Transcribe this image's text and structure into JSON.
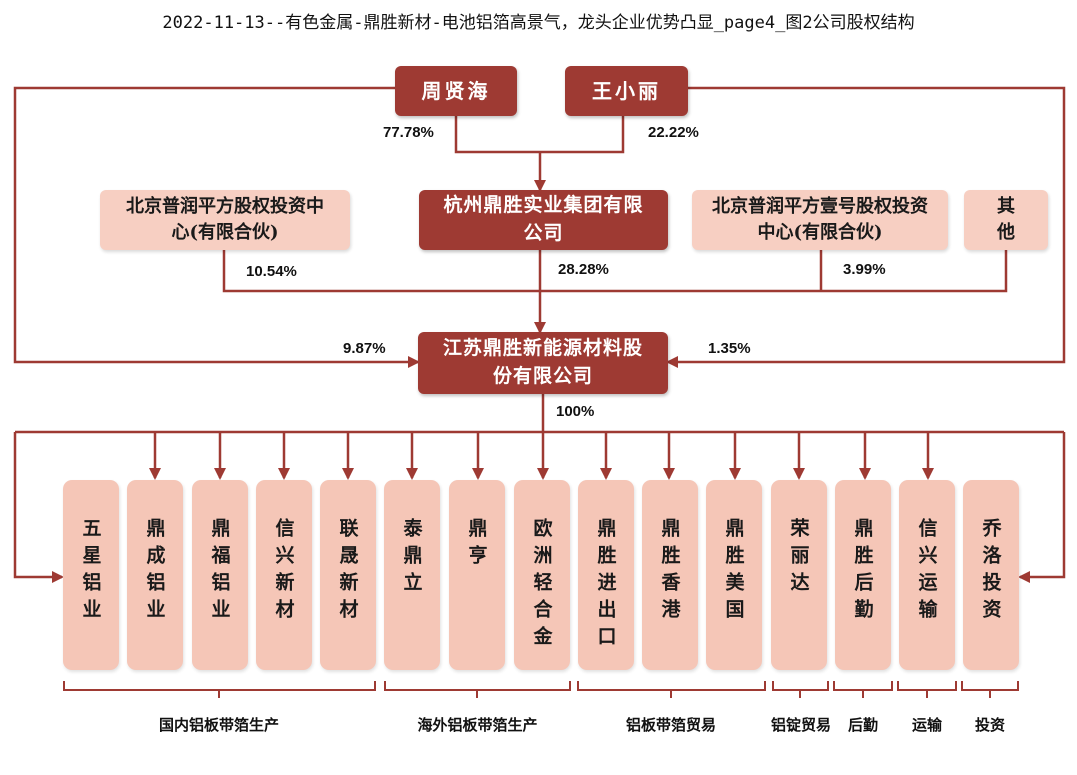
{
  "title": "2022-11-13--有色金属-鼎胜新材-电池铝箔高景气，龙头企业优势凸显_page4_图2公司股权结构",
  "shareholders": {
    "zhou": "周贤海",
    "wang": "王小丽",
    "hangzhou": "杭州鼎胜实业集团有限公司",
    "puruo1": "北京普润平方股权投资中心(有限合伙)",
    "puruo2": "北京普润平方壹号股权投资中心(有限合伙)",
    "others": "其他"
  },
  "company": "江苏鼎胜新能源材料股份有限公司",
  "percentages": {
    "zhou_to_hangzhou": "77.78%",
    "wang_to_hangzhou": "22.22%",
    "puruo1": "10.54%",
    "hangzhou": "28.28%",
    "puruo2": "3.99%",
    "zhou_direct": "9.87%",
    "wang_direct": "1.35%",
    "subsidiaries": "100%"
  },
  "subsidiaries": [
    "五星铝业",
    "鼎成铝业",
    "鼎福铝业",
    "信兴新材",
    "联晟新材",
    "泰鼎立",
    "鼎亨",
    "欧洲轻合金",
    "鼎胜进出口",
    "鼎胜香港",
    "鼎胜美国",
    "荣丽达",
    "鼎胜后勤",
    "信兴运输",
    "乔洛投资"
  ],
  "categories": [
    "国内铝板带箔生产",
    "海外铝板带箔生产",
    "铝板带箔贸易",
    "铝锭贸易",
    "后勤",
    "运输",
    "投资"
  ]
}
